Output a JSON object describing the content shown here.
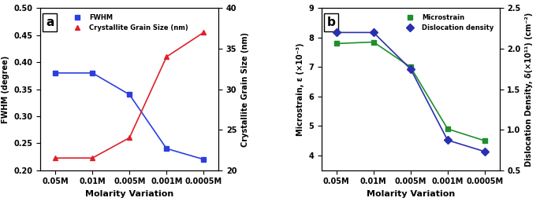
{
  "chart_data": [
    {
      "type": "line",
      "title": "a",
      "categories": [
        "0.05M",
        "0.01M",
        "0.005M",
        "0.001M",
        "0.0005M"
      ],
      "x_label": "Molarity Variation",
      "y_label": "FWHM (degree)",
      "y2_label": "Crystallite Grain Size (nm)",
      "ylim": [
        0.2,
        0.5
      ],
      "yticks": [
        {
          "value": 0.2,
          "label": "0.20"
        },
        0.25,
        {
          "value": 0.3,
          "label": "0.30"
        },
        0.35,
        {
          "value": 0.4,
          "label": "0.40"
        },
        0.45,
        {
          "value": 0.5,
          "label": "0.50"
        }
      ],
      "y2lim": [
        20,
        40
      ],
      "y2ticks": [
        20,
        25,
        30,
        35,
        40
      ],
      "legend": "upper center",
      "series": [
        {
          "name": "FWHM",
          "color": "#2b3fe0",
          "marker": "square",
          "values": [
            0.38,
            0.38,
            0.34,
            0.24,
            0.22
          ]
        },
        {
          "name": "Crystallite Grain Size (nm)",
          "color": "#e0202a",
          "marker": "triangle",
          "axis": "y2",
          "values": [
            21.5,
            21.5,
            24,
            34,
            37
          ]
        }
      ]
    },
    {
      "type": "line",
      "title": "b",
      "categories": [
        "0.05M",
        "0.01M",
        "0.005M",
        "0.001M",
        "0.0005M"
      ],
      "x_label": "Molarity Variation",
      "y_label": "Microstrain, ε (×10⁻³)",
      "y2_label": "Dislocation Density, δ(×10¹¹) (cm⁻²)",
      "ylim": [
        3.5,
        9
      ],
      "yticks": [
        4,
        5,
        6,
        7,
        8,
        9
      ],
      "y2lim": [
        0.5,
        2.5
      ],
      "y2ticks": [
        0.5,
        1.0,
        1.5,
        2.0,
        2.5
      ],
      "legend": "upper right",
      "series": [
        {
          "name": "Microstrain",
          "color": "#1e8f2a",
          "marker": "square",
          "values": [
            7.8,
            7.85,
            7.0,
            4.9,
            4.5
          ]
        },
        {
          "name": "Dislocation density",
          "color": "#2a2fb0",
          "marker": "diamond",
          "axis": "y2",
          "values": [
            2.2,
            2.2,
            1.75,
            0.87,
            0.73
          ]
        }
      ]
    }
  ]
}
